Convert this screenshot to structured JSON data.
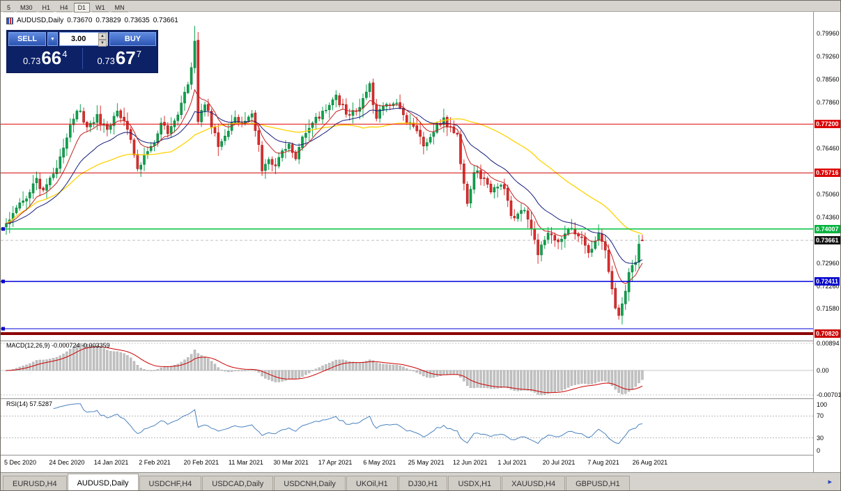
{
  "period_toolbar": {
    "buttons": [
      "5",
      "M30",
      "H1",
      "H4",
      "D1",
      "W1",
      "MN"
    ],
    "active": "D1"
  },
  "chart_header": {
    "symbol": "AUDUSD,Daily",
    "open": "0.73670",
    "high": "0.73829",
    "low": "0.73635",
    "close": "0.73661"
  },
  "trade_panel": {
    "sell_label": "SELL",
    "buy_label": "BUY",
    "volume": "3.00",
    "bid": {
      "prefix": "0.73",
      "big": "66",
      "sup": "4"
    },
    "ask": {
      "prefix": "0.73",
      "big": "67",
      "sup": "7"
    }
  },
  "indicators": {
    "macd_label": "MACD(12,26,9) -0.000724 -0.003359",
    "macd_axis": {
      "top": "0.00894",
      "zero": "0.00",
      "bottom": "-0.00701"
    },
    "rsi_label": "RSI(14) 57.5287",
    "rsi_axis": [
      "100",
      "70",
      "30",
      "0"
    ]
  },
  "price_axis": {
    "gridline_labels": [
      {
        "text": "0.79960",
        "price": 0.7996
      },
      {
        "text": "0.79260",
        "price": 0.7926
      },
      {
        "text": "0.78560",
        "price": 0.7856
      },
      {
        "text": "0.77860",
        "price": 0.7786
      },
      {
        "text": "0.76460",
        "price": 0.7646
      },
      {
        "text": "0.75060",
        "price": 0.7506
      },
      {
        "text": "0.74360",
        "price": 0.7436
      },
      {
        "text": "0.72960",
        "price": 0.7296
      },
      {
        "text": "0.72260",
        "price": 0.7226
      },
      {
        "text": "0.71580",
        "price": 0.7158
      }
    ],
    "line_labels": [
      {
        "text": "0.77200",
        "price": 0.772,
        "color": "#dd0000"
      },
      {
        "text": "0.75716",
        "price": 0.75716,
        "color": "#dd0000"
      },
      {
        "text": "0.74007",
        "price": 0.74007,
        "color": "#00b33c"
      },
      {
        "text": "0.73661",
        "price": 0.73661,
        "color": "#111111"
      },
      {
        "text": "0.72411",
        "price": 0.72411,
        "color": "#0000cc"
      },
      {
        "text": "0.70820",
        "price": 0.7082,
        "color": "#cc0000"
      }
    ]
  },
  "time_axis": {
    "labels": [
      "5 Dec 2020",
      "24 Dec 2020",
      "14 Jan 2021",
      "2 Feb 2021",
      "20 Feb 2021",
      "11 Mar 2021",
      "30 Mar 2021",
      "17 Apr 2021",
      "6 May 2021",
      "25 May 2021",
      "12 Jun 2021",
      "1 Jul 2021",
      "20 Jul 2021",
      "7 Aug 2021",
      "26 Aug 2021"
    ]
  },
  "tabs": {
    "items": [
      "EURUSD,H4",
      "AUDUSD,Daily",
      "USDCHF,H4",
      "USDCAD,Daily",
      "USDCNH,Daily",
      "UKOil,H1",
      "DJ30,H1",
      "USDX,H1",
      "XAUUSD,H4",
      "GBPUSD,H1"
    ],
    "active": "AUDUSD,Daily"
  },
  "tab_scroll_icon": "▸",
  "chart_data": {
    "type": "candlestick",
    "symbol": "AUDUSD",
    "timeframe": "Daily",
    "bars": 190,
    "price_top": 0.80623,
    "price_bottom": 0.7063,
    "current_price": 0.73661,
    "last_bar": {
      "open": 0.7367,
      "high": 0.73829,
      "low": 0.73635,
      "close": 0.73661
    },
    "anchors": [
      [
        0,
        0.7418
      ],
      [
        3,
        0.7462
      ],
      [
        6,
        0.75
      ],
      [
        9,
        0.7545
      ],
      [
        11,
        0.7518
      ],
      [
        14,
        0.7562
      ],
      [
        17,
        0.7655
      ],
      [
        20,
        0.7742
      ],
      [
        22,
        0.777
      ],
      [
        24,
        0.7702
      ],
      [
        27,
        0.7742
      ],
      [
        30,
        0.7705
      ],
      [
        33,
        0.7762
      ],
      [
        35,
        0.773
      ],
      [
        37,
        0.768
      ],
      [
        39,
        0.7592
      ],
      [
        41,
        0.7618
      ],
      [
        44,
        0.7662
      ],
      [
        46,
        0.772
      ],
      [
        48,
        0.77
      ],
      [
        51,
        0.7748
      ],
      [
        54,
        0.7838
      ],
      [
        56,
        0.7965
      ],
      [
        57,
        0.773
      ],
      [
        59,
        0.7788
      ],
      [
        61,
        0.7722
      ],
      [
        63,
        0.766
      ],
      [
        66,
        0.7702
      ],
      [
        68,
        0.7748
      ],
      [
        70,
        0.7712
      ],
      [
        73,
        0.7745
      ],
      [
        75,
        0.7648
      ],
      [
        76,
        0.7588
      ],
      [
        78,
        0.7622
      ],
      [
        80,
        0.7592
      ],
      [
        82,
        0.7632
      ],
      [
        84,
        0.7658
      ],
      [
        86,
        0.7615
      ],
      [
        88,
        0.7672
      ],
      [
        90,
        0.7712
      ],
      [
        92,
        0.7735
      ],
      [
        95,
        0.7758
      ],
      [
        98,
        0.7805
      ],
      [
        100,
        0.7772
      ],
      [
        102,
        0.7748
      ],
      [
        104,
        0.7762
      ],
      [
        106,
        0.7788
      ],
      [
        108,
        0.7842
      ],
      [
        110,
        0.7732
      ],
      [
        112,
        0.7782
      ],
      [
        114,
        0.7772
      ],
      [
        116,
        0.779
      ],
      [
        118,
        0.7748
      ],
      [
        120,
        0.7718
      ],
      [
        122,
        0.7702
      ],
      [
        124,
        0.7662
      ],
      [
        126,
        0.7678
      ],
      [
        128,
        0.7718
      ],
      [
        130,
        0.7735
      ],
      [
        132,
        0.7708
      ],
      [
        134,
        0.7692
      ],
      [
        135,
        0.7605
      ],
      [
        137,
        0.7482
      ],
      [
        139,
        0.7578
      ],
      [
        141,
        0.7562
      ],
      [
        143,
        0.7528
      ],
      [
        144,
        0.7512
      ],
      [
        146,
        0.7538
      ],
      [
        148,
        0.7528
      ],
      [
        150,
        0.7432
      ],
      [
        152,
        0.7448
      ],
      [
        154,
        0.7462
      ],
      [
        156,
        0.7392
      ],
      [
        158,
        0.7332
      ],
      [
        160,
        0.7368
      ],
      [
        161,
        0.7398
      ],
      [
        163,
        0.7372
      ],
      [
        164,
        0.7358
      ],
      [
        166,
        0.7382
      ],
      [
        167,
        0.7402
      ],
      [
        169,
        0.7388
      ],
      [
        171,
        0.7372
      ],
      [
        173,
        0.7332
      ],
      [
        175,
        0.7358
      ],
      [
        176,
        0.7378
      ],
      [
        178,
        0.7332
      ],
      [
        179,
        0.7262
      ],
      [
        180,
        0.7212
      ],
      [
        181,
        0.7158
      ],
      [
        182,
        0.7128
      ],
      [
        183,
        0.7168
      ],
      [
        184,
        0.7218
      ],
      [
        185,
        0.7262
      ],
      [
        186,
        0.7282
      ],
      [
        187,
        0.7302
      ],
      [
        188,
        0.7352
      ],
      [
        189,
        0.73661
      ]
    ],
    "sr_lines": [
      {
        "price": 0.772,
        "color": "#e00000",
        "width": 1,
        "handle": false
      },
      {
        "price": 0.75716,
        "color": "#d00000",
        "width": 1,
        "handle": false
      },
      {
        "price": 0.74007,
        "color": "#00c040",
        "width": 1.5,
        "handle": true
      },
      {
        "price": 0.72411,
        "color": "#0000dd",
        "width": 1.5,
        "handle": true
      },
      {
        "price": 0.7097,
        "color": "#0000dd",
        "width": 1,
        "handle": true
      },
      {
        "price": 0.7082,
        "color": "#8b0000",
        "width": 4,
        "handle": false
      }
    ],
    "colors": {
      "up": "#0fa24e",
      "up_border": "#077a38",
      "down": "#df2f2f",
      "down_border": "#a31212",
      "ma_fast": "#c32222",
      "ma_mid": "#151c7a",
      "ma_slow": "#ffd200",
      "macd_hist": "#c2c2c2",
      "macd_signal": "#cc0000",
      "rsi": "#4a82bf"
    }
  }
}
